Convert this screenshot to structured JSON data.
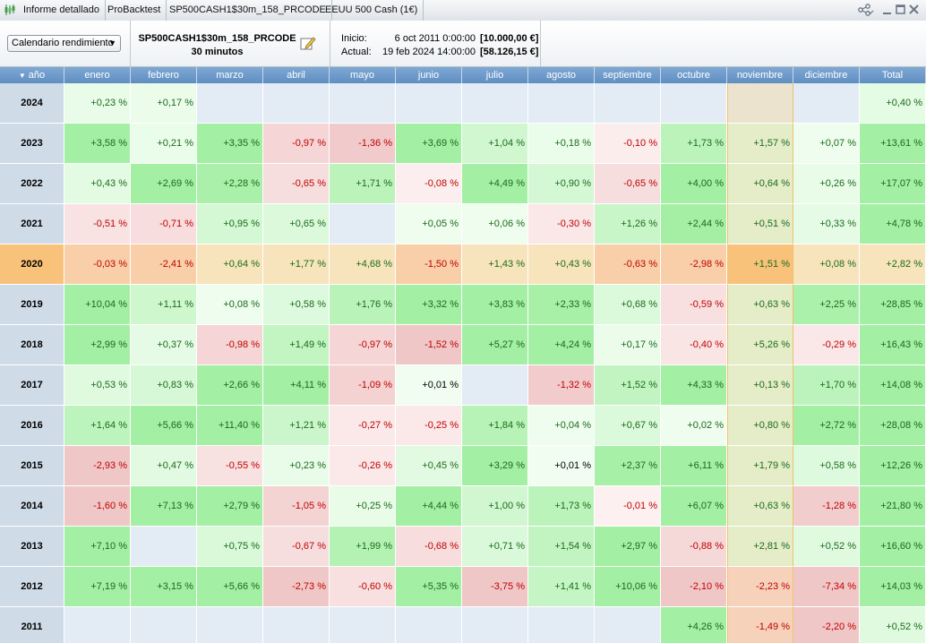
{
  "titlebar": {
    "tabs": [
      "Informe detallado",
      "ProBacktest",
      "SP500CASH1$30m_158_PRCODE",
      "EEUU 500 Cash (1€)"
    ],
    "icons": [
      "share-icon",
      "minimize-icon",
      "maximize-icon",
      "close-icon"
    ]
  },
  "toolbar": {
    "mode_select": "Calendario rendimiento",
    "strategy_name": "SP500CASH1$30m_158_PRCODE",
    "timeframe": "30 minutos",
    "start_label": "Inicio:",
    "start_date": "6 oct 2011 0:00:00",
    "start_amount": "[10.000,00 €]",
    "current_label": "Actual:",
    "current_date": "19 feb 2024 14:00:00",
    "current_amount": "[58.126,15 €]"
  },
  "table": {
    "year_header": "año",
    "month_headers": [
      "enero",
      "febrero",
      "marzo",
      "abril",
      "mayo",
      "junio",
      "julio",
      "agosto",
      "septiembre",
      "octubre",
      "noviembre",
      "diciembre",
      "Total"
    ],
    "selected_year": "2020",
    "rows": [
      {
        "year": "2024",
        "cells": [
          "+0,23 %",
          "+0,17 %",
          "",
          "",
          "",
          "",
          "",
          "",
          "",
          "",
          "",
          "",
          "+0,40 %"
        ]
      },
      {
        "year": "2023",
        "cells": [
          "+3,58 %",
          "+0,21 %",
          "+3,35 %",
          "-0,97 %",
          "-1,36 %",
          "+3,69 %",
          "+1,04 %",
          "+0,18 %",
          "-0,10 %",
          "+1,73 %",
          "+1,57 %",
          "+0,07 %",
          "+13,61 %"
        ]
      },
      {
        "year": "2022",
        "cells": [
          "+0,43 %",
          "+2,69 %",
          "+2,28 %",
          "-0,65 %",
          "+1,71 %",
          "-0,08 %",
          "+4,49 %",
          "+0,90 %",
          "-0,65 %",
          "+4,00 %",
          "+0,64 %",
          "+0,26 %",
          "+17,07 %"
        ]
      },
      {
        "year": "2021",
        "cells": [
          "-0,51 %",
          "-0,71 %",
          "+0,95 %",
          "+0,65 %",
          "",
          "+0,05 %",
          "+0,06 %",
          "-0,30 %",
          "+1,26 %",
          "+2,44 %",
          "+0,51 %",
          "+0,33 %",
          "+4,78 %"
        ]
      },
      {
        "year": "2020",
        "cells": [
          "-0,03 %",
          "-2,41 %",
          "+0,64 %",
          "+1,77 %",
          "+4,68 %",
          "-1,50 %",
          "+1,43 %",
          "+0,43 %",
          "-0,63 %",
          "-2,98 %",
          "+1,51 %",
          "+0,08 %",
          "+2,82 %"
        ]
      },
      {
        "year": "2019",
        "cells": [
          "+10,04 %",
          "+1,11 %",
          "+0,08 %",
          "+0,58 %",
          "+1,76 %",
          "+3,32 %",
          "+3,83 %",
          "+2,33 %",
          "+0,68 %",
          "-0,59 %",
          "+0,63 %",
          "+2,25 %",
          "+28,85 %"
        ]
      },
      {
        "year": "2018",
        "cells": [
          "+2,99 %",
          "+0,37 %",
          "-0,98 %",
          "+1,49 %",
          "-0,97 %",
          "-1,52 %",
          "+5,27 %",
          "+4,24 %",
          "+0,17 %",
          "-0,40 %",
          "+5,26 %",
          "-0,29 %",
          "+16,43 %"
        ]
      },
      {
        "year": "2017",
        "cells": [
          "+0,53 %",
          "+0,83 %",
          "+2,66 %",
          "+4,11 %",
          "-1,09 %",
          "+0,01 %",
          "",
          "-1,32 %",
          "+1,52 %",
          "+4,33 %",
          "+0,13 %",
          "+1,70 %",
          "+14,08 %"
        ]
      },
      {
        "year": "2016",
        "cells": [
          "+1,64 %",
          "+5,66 %",
          "+11,40 %",
          "+1,21 %",
          "-0,27 %",
          "-0,25 %",
          "+1,84 %",
          "+0,04 %",
          "+0,67 %",
          "+0,02 %",
          "+0,80 %",
          "+2,72 %",
          "+28,08 %"
        ]
      },
      {
        "year": "2015",
        "cells": [
          "-2,93 %",
          "+0,47 %",
          "-0,55 %",
          "+0,23 %",
          "-0,26 %",
          "+0,45 %",
          "+3,29 %",
          "+0,01 %",
          "+2,37 %",
          "+6,11 %",
          "+1,79 %",
          "+0,58 %",
          "+12,26 %"
        ]
      },
      {
        "year": "2014",
        "cells": [
          "-1,60 %",
          "+7,13 %",
          "+2,79 %",
          "-1,05 %",
          "+0,25 %",
          "+4,44 %",
          "+1,00 %",
          "+1,73 %",
          "-0,01 %",
          "+6,07 %",
          "+0,63 %",
          "-1,28 %",
          "+21,80 %"
        ]
      },
      {
        "year": "2013",
        "cells": [
          "+7,10 %",
          "",
          "+0,75 %",
          "-0,67 %",
          "+1,99 %",
          "-0,68 %",
          "+0,71 %",
          "+1,54 %",
          "+2,97 %",
          "-0,88 %",
          "+2,81 %",
          "+0,52 %",
          "+16,60 %"
        ]
      },
      {
        "year": "2012",
        "cells": [
          "+7,19 %",
          "+3,15 %",
          "+5,66 %",
          "-2,73 %",
          "-0,60 %",
          "+5,35 %",
          "-3,75 %",
          "+1,41 %",
          "+10,06 %",
          "-2,10 %",
          "-2,23 %",
          "-7,34 %",
          "+14,03 %"
        ]
      },
      {
        "year": "2011",
        "cells": [
          "",
          "",
          "",
          "",
          "",
          "",
          "",
          "",
          "",
          "+4,26 %",
          "-1,49 %",
          "-2,20 %",
          "+0,52 %"
        ]
      }
    ]
  },
  "colors": {
    "header_bg": "#6b98c9",
    "year_col_bg": "#cfdbe7",
    "empty_cell_bg": "#e3ecf5",
    "selected_row_bg": "#f9c27a",
    "positive_text": "#1a6b1a",
    "negative_text": "#c00000"
  }
}
